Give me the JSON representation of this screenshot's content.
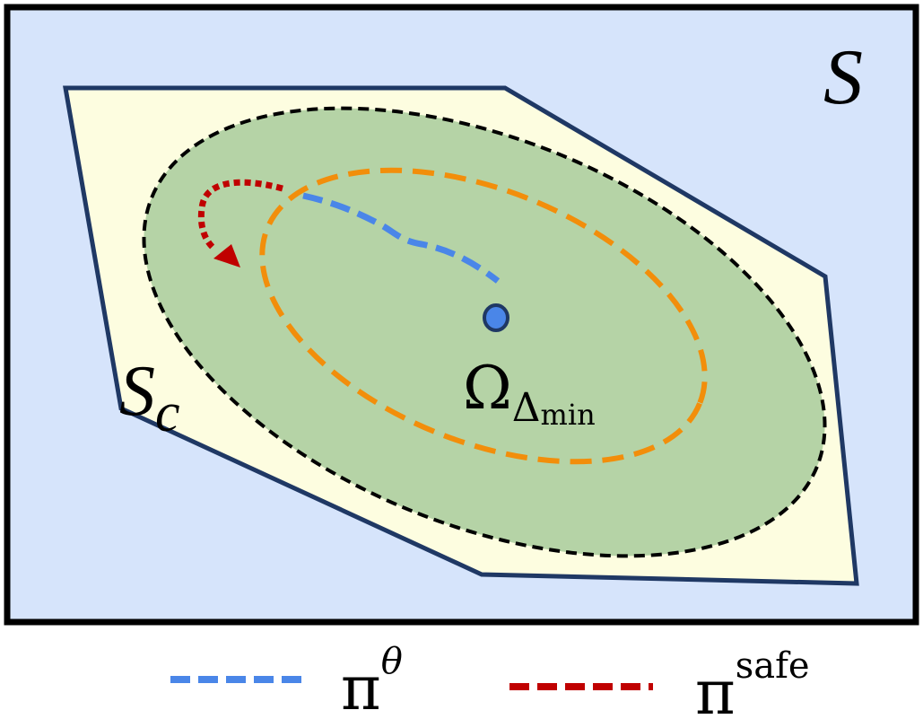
{
  "regions": {
    "state_space": {
      "symbol": "S"
    },
    "constraint_set": {
      "symbol": "S",
      "subscript": "c"
    },
    "invariant_set": {
      "symbol": "Ω",
      "subscript": "Δ",
      "subsubscript": "min"
    }
  },
  "legend": [
    {
      "symbol": "π",
      "superscript": "θ"
    },
    {
      "symbol": "π",
      "superscript": "safe"
    }
  ]
}
